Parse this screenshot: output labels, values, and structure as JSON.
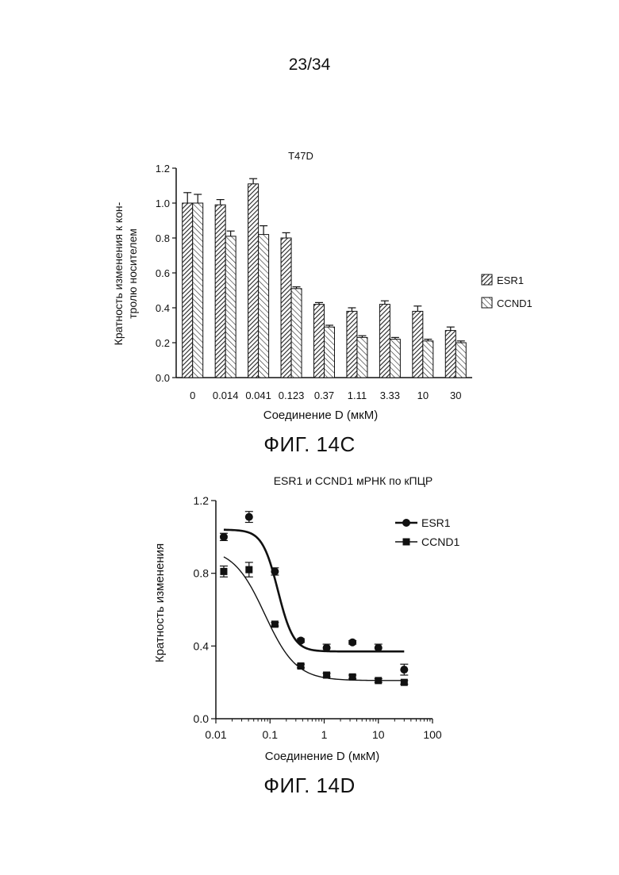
{
  "page_number": "23/34",
  "chart_data": [
    {
      "type": "bar",
      "figure_label": "ФИГ. 14C",
      "title": "T47D",
      "xlabel": "Соединение D (мкМ)",
      "ylabel_line1": "Кратность изменения к кон-",
      "ylabel_line2": "тролю носителем",
      "ylim": [
        0,
        1.2
      ],
      "yticks": [
        "0.0",
        "0.2",
        "0.4",
        "0.6",
        "0.8",
        "1.0",
        "1.2"
      ],
      "categories": [
        "0",
        "0.014",
        "0.041",
        "0.123",
        "0.37",
        "1.11",
        "3.33",
        "10",
        "30"
      ],
      "legend_position": "right",
      "series": [
        {
          "name": "ESR1",
          "pattern": "hatch-dense",
          "values": [
            1.0,
            0.99,
            1.11,
            0.8,
            0.42,
            0.38,
            0.42,
            0.38,
            0.27
          ],
          "errors": [
            0.06,
            0.03,
            0.03,
            0.03,
            0.01,
            0.02,
            0.02,
            0.03,
            0.02
          ]
        },
        {
          "name": "CCND1",
          "pattern": "hatch-sparse",
          "values": [
            1.0,
            0.81,
            0.82,
            0.51,
            0.29,
            0.23,
            0.22,
            0.21,
            0.2
          ],
          "errors": [
            0.05,
            0.03,
            0.05,
            0.01,
            0.01,
            0.01,
            0.01,
            0.01,
            0.01
          ]
        }
      ]
    },
    {
      "type": "scatter",
      "figure_label": "ФИГ. 14D",
      "title": "ESR1 и CCND1 мРНК по кПЦР",
      "xlabel": "Соединение D (мкМ)",
      "ylabel": "Кратность изменения",
      "x_scale": "log",
      "xlim": [
        0.01,
        100
      ],
      "ylim": [
        0,
        1.2
      ],
      "xticks": [
        "0.01",
        "0.1",
        "1",
        "10",
        "100"
      ],
      "yticks": [
        "0.0",
        "0.4",
        "0.8",
        "1.2"
      ],
      "legend_position": "top-right",
      "series": [
        {
          "name": "ESR1",
          "marker": "circle",
          "x": [
            0.014,
            0.041,
            0.123,
            0.37,
            1.11,
            3.33,
            10,
            30
          ],
          "y": [
            1.0,
            1.11,
            0.81,
            0.43,
            0.39,
            0.42,
            0.39,
            0.27
          ],
          "errors": [
            0.02,
            0.03,
            0.02,
            0.01,
            0.02,
            0.01,
            0.02,
            0.03
          ],
          "fit": {
            "top": 1.04,
            "bottom": 0.37,
            "ec50": 0.14,
            "hill": 3.0
          }
        },
        {
          "name": "CCND1",
          "marker": "square",
          "x": [
            0.014,
            0.041,
            0.123,
            0.37,
            1.11,
            3.33,
            10,
            30
          ],
          "y": [
            0.81,
            0.82,
            0.52,
            0.29,
            0.24,
            0.23,
            0.21,
            0.2
          ],
          "errors": [
            0.03,
            0.04,
            0.01,
            0.01,
            0.01,
            0.01,
            0.01,
            0.01
          ],
          "fit": {
            "top": 0.94,
            "bottom": 0.21,
            "ec50": 0.08,
            "hill": 1.5
          }
        }
      ]
    }
  ]
}
